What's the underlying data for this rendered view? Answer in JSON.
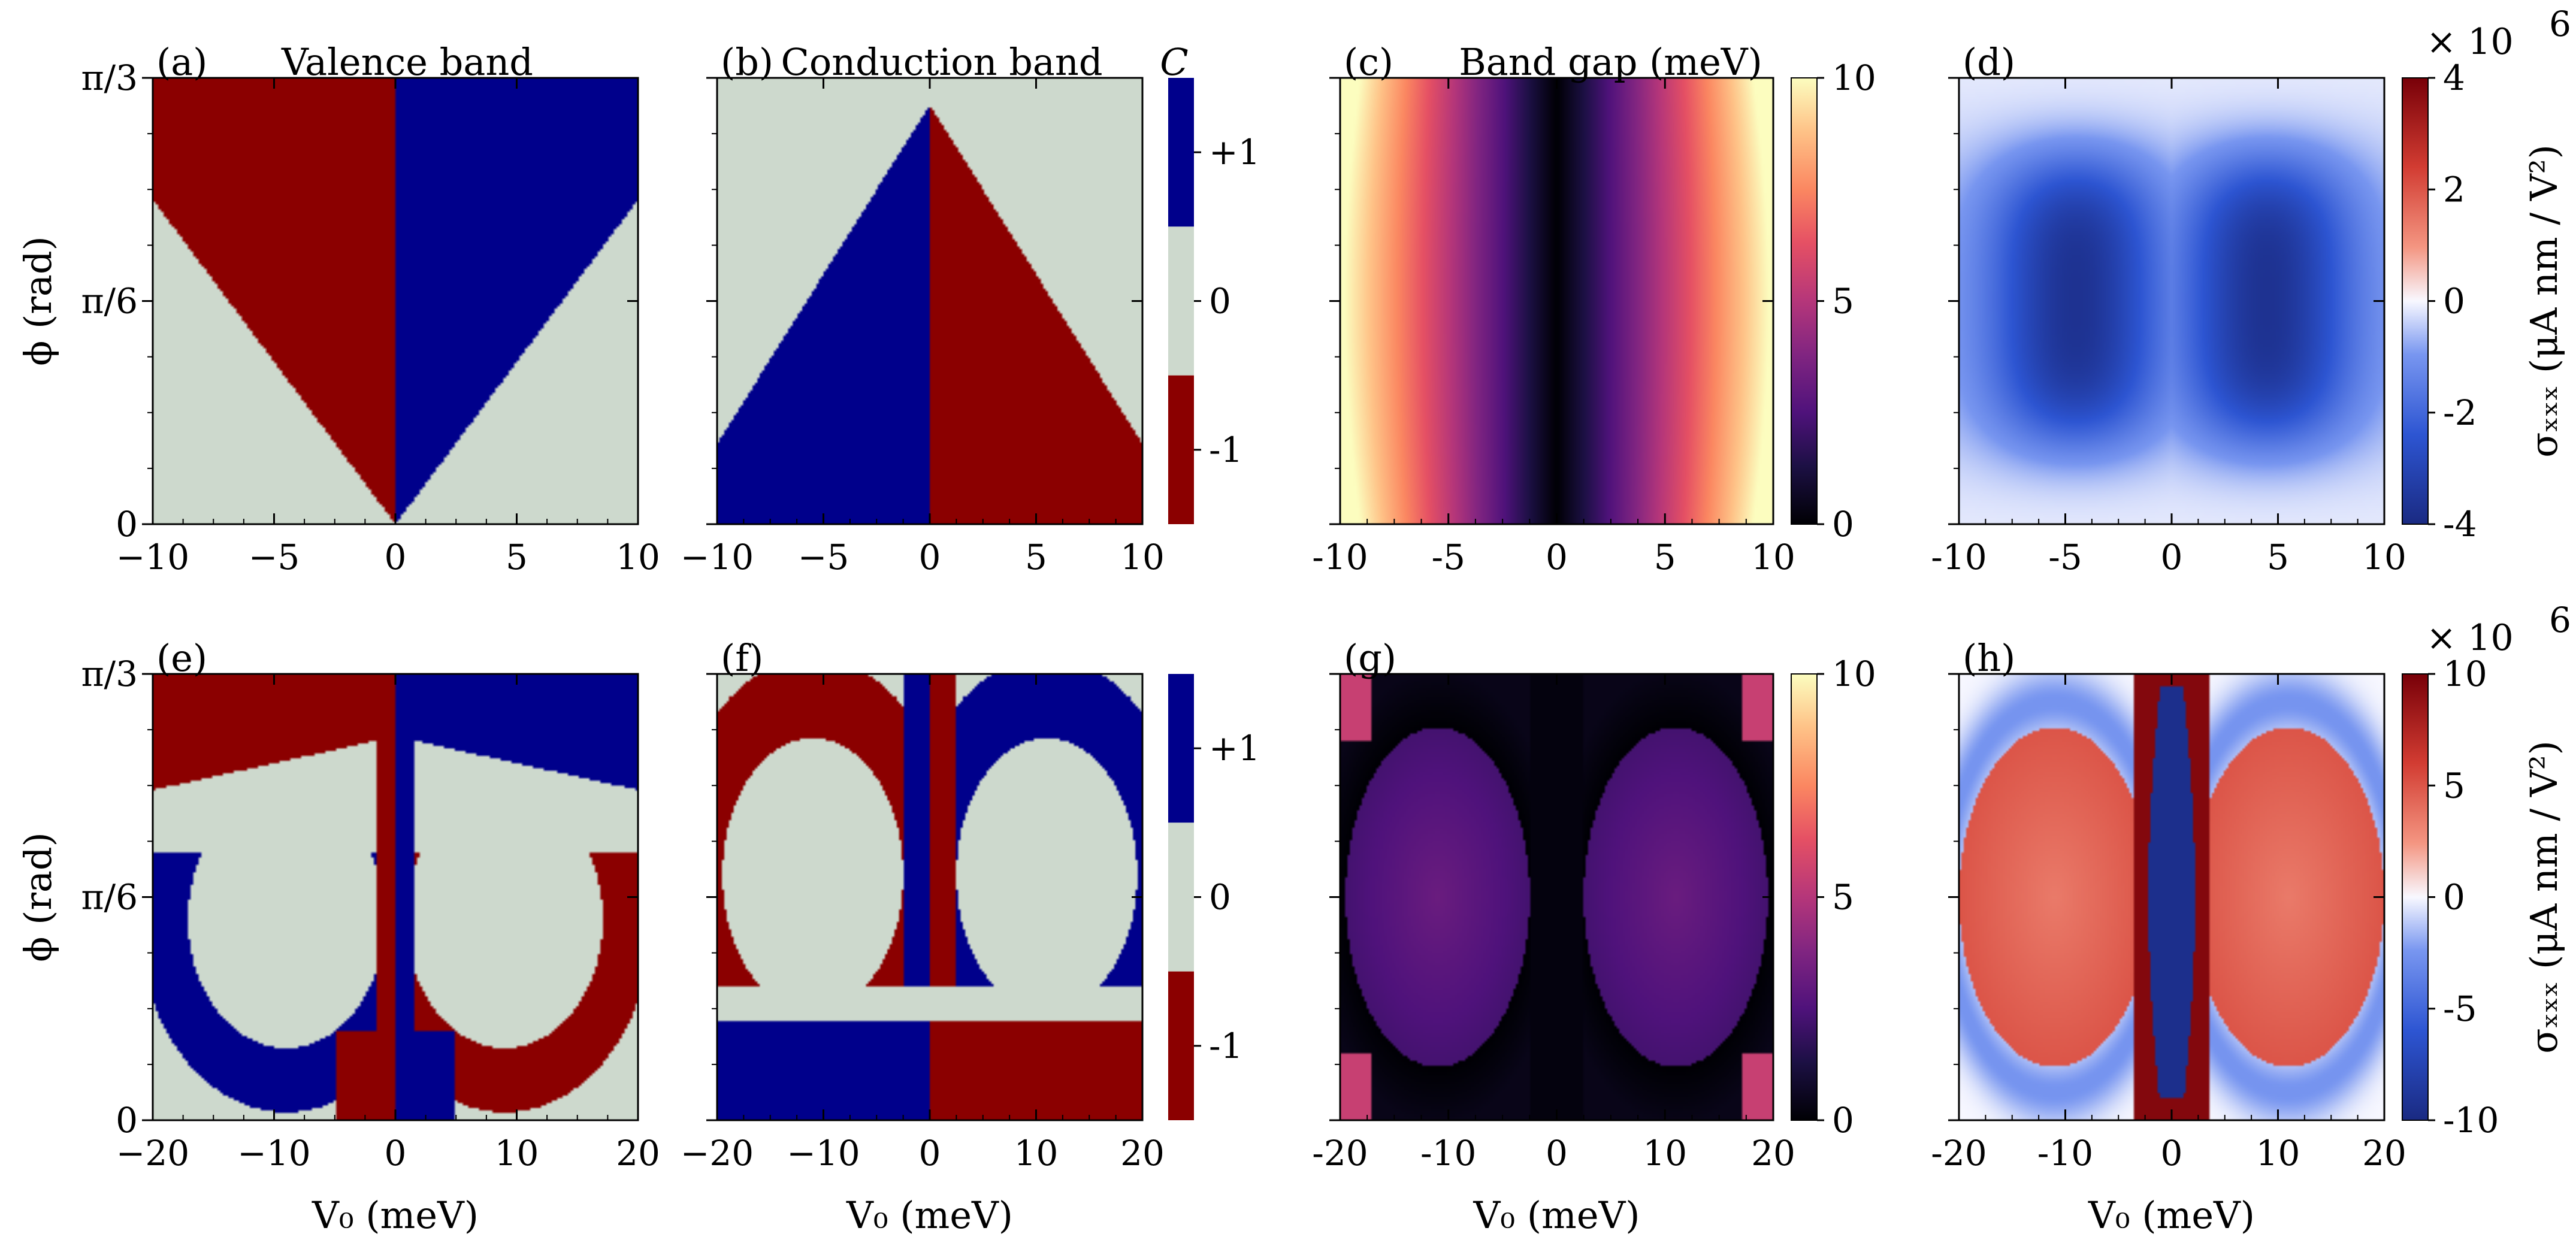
{
  "chart_data": [
    {
      "id": "a",
      "type": "heatmap",
      "letter": "(a)",
      "title": "Valence band",
      "xlim": [
        -10,
        10
      ],
      "xticks": [
        "−10",
        "−5",
        "0",
        "5",
        "10"
      ],
      "ylabel": "ϕ (rad)",
      "yticks": [
        "0",
        "π/6",
        "π/3"
      ],
      "ylim": [
        0,
        1.0472
      ],
      "colorbar": null
    },
    {
      "id": "b",
      "type": "heatmap",
      "letter": "(b)",
      "title": "Conduction band",
      "xlim": [
        -10,
        10
      ],
      "xticks": [
        "−10",
        "−5",
        "0",
        "5",
        "10"
      ],
      "colorbar": {
        "label": "C",
        "ticks": [
          "-1",
          "0",
          "+1"
        ],
        "colors": [
          "#8b0000",
          "#cdd9cd",
          "#00008b"
        ],
        "values": [
          -1,
          0,
          1
        ]
      }
    },
    {
      "id": "c",
      "type": "heatmap",
      "letter": "(c)",
      "title": "Band gap (meV)",
      "xlim": [
        -10,
        10
      ],
      "xticks": [
        "-10",
        "-5",
        "0",
        "5",
        "10"
      ],
      "colorbar": {
        "ticks": [
          "0",
          "5",
          "10"
        ],
        "range": [
          0,
          10
        ],
        "colormap": "magma"
      }
    },
    {
      "id": "d",
      "type": "heatmap",
      "letter": "(d)",
      "xlim": [
        -10,
        10
      ],
      "xticks": [
        "-10",
        "-5",
        "0",
        "5",
        "10"
      ],
      "colorbar": {
        "ticks": [
          "-4",
          "-2",
          "0",
          "2",
          "4"
        ],
        "range": [
          -4,
          4
        ],
        "colormap": "seismic",
        "label": "σₓₓₓ (μA nm / V²)",
        "multiplier": "× 10",
        "exponent": "6"
      }
    },
    {
      "id": "e",
      "type": "heatmap",
      "letter": "(e)",
      "xlim": [
        -20,
        20
      ],
      "xticks": [
        "−20",
        "−10",
        "0",
        "10",
        "20"
      ],
      "xlabel": "V₀ (meV)",
      "ylabel": "ϕ (rad)",
      "yticks": [
        "0",
        "π/6",
        "π/3"
      ],
      "ylim": [
        0,
        1.0472
      ],
      "colorbar": null
    },
    {
      "id": "f",
      "type": "heatmap",
      "letter": "(f)",
      "xlim": [
        -20,
        20
      ],
      "xticks": [
        "−20",
        "−10",
        "0",
        "10",
        "20"
      ],
      "xlabel": "V₀ (meV)",
      "colorbar": {
        "ticks": [
          "-1",
          "0",
          "+1"
        ],
        "colors": [
          "#8b0000",
          "#cdd9cd",
          "#00008b"
        ],
        "values": [
          -1,
          0,
          1
        ]
      }
    },
    {
      "id": "g",
      "type": "heatmap",
      "letter": "(g)",
      "xlim": [
        -20,
        20
      ],
      "xticks": [
        "-20",
        "-10",
        "0",
        "10",
        "20"
      ],
      "xlabel": "V₀ (meV)",
      "colorbar": {
        "ticks": [
          "0",
          "5",
          "10"
        ],
        "range": [
          0,
          10
        ],
        "colormap": "magma"
      }
    },
    {
      "id": "h",
      "type": "heatmap",
      "letter": "(h)",
      "xlim": [
        -20,
        20
      ],
      "xticks": [
        "-20",
        "-10",
        "0",
        "10",
        "20"
      ],
      "xlabel": "V₀ (meV)",
      "colorbar": {
        "ticks": [
          "-10",
          "-5",
          "0",
          "5",
          "10"
        ],
        "range": [
          -10,
          10
        ],
        "colormap": "seismic",
        "label": "σₓₓₓ (μA nm / V²)",
        "multiplier": "× 10",
        "exponent": "6"
      }
    }
  ]
}
